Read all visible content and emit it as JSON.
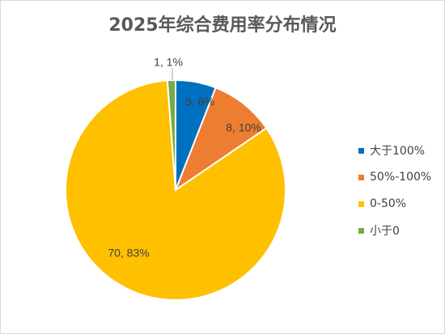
{
  "chart_data": {
    "type": "pie",
    "title": "2025年综合费用率分布情况",
    "legend_position": "right",
    "slices": [
      {
        "name": "大于100%",
        "value": 5,
        "percent_label": "5, 6%",
        "color": "#0070c0"
      },
      {
        "name": "50%-100%",
        "value": 8,
        "percent_label": "8, 10%",
        "color": "#ed7d31"
      },
      {
        "name": "0-50%",
        "value": 70,
        "percent_label": "70, 83%",
        "color": "#ffc000"
      },
      {
        "name": "小于0",
        "value": 1,
        "percent_label": "1, 1%",
        "color": "#70ad47"
      }
    ]
  }
}
